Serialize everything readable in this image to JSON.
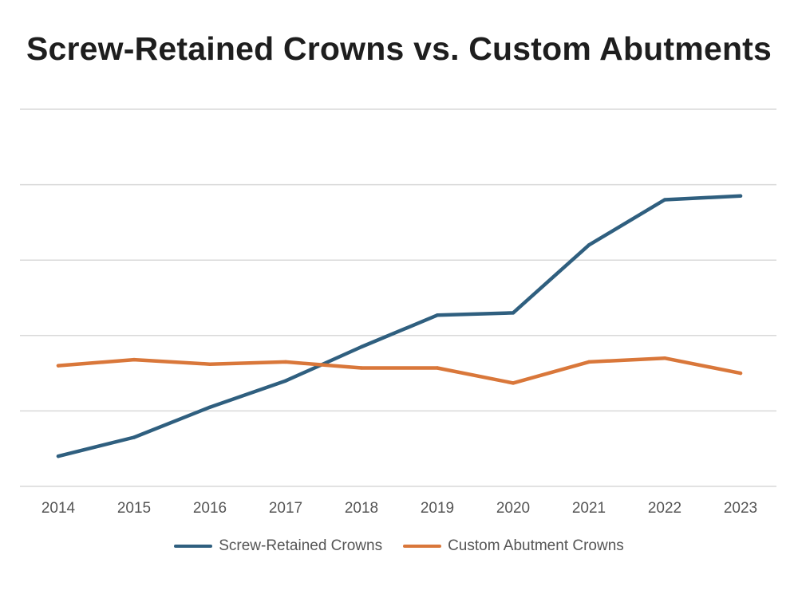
{
  "chart_data": {
    "type": "line",
    "title": "Screw-Retained Crowns vs. Custom Abutments",
    "xlabel": "",
    "ylabel": "",
    "categories": [
      "2014",
      "2015",
      "2016",
      "2017",
      "2018",
      "2019",
      "2020",
      "2021",
      "2022",
      "2023"
    ],
    "ylim": [
      0,
      50
    ],
    "y_gridlines": [
      0,
      10,
      20,
      30,
      40,
      50
    ],
    "y_tick_labels_visible": false,
    "grid": true,
    "legend_position": "bottom",
    "series": [
      {
        "name": "Screw-Retained Crowns",
        "color": "#2f5f7f",
        "values": [
          4,
          6.5,
          10.5,
          14,
          18.5,
          22.7,
          23,
          32,
          38,
          38.5
        ]
      },
      {
        "name": "Custom Abutment Crowns",
        "color": "#d9773a",
        "values": [
          16,
          16.8,
          16.2,
          16.5,
          15.7,
          15.7,
          13.7,
          16.5,
          17,
          15
        ]
      }
    ]
  }
}
